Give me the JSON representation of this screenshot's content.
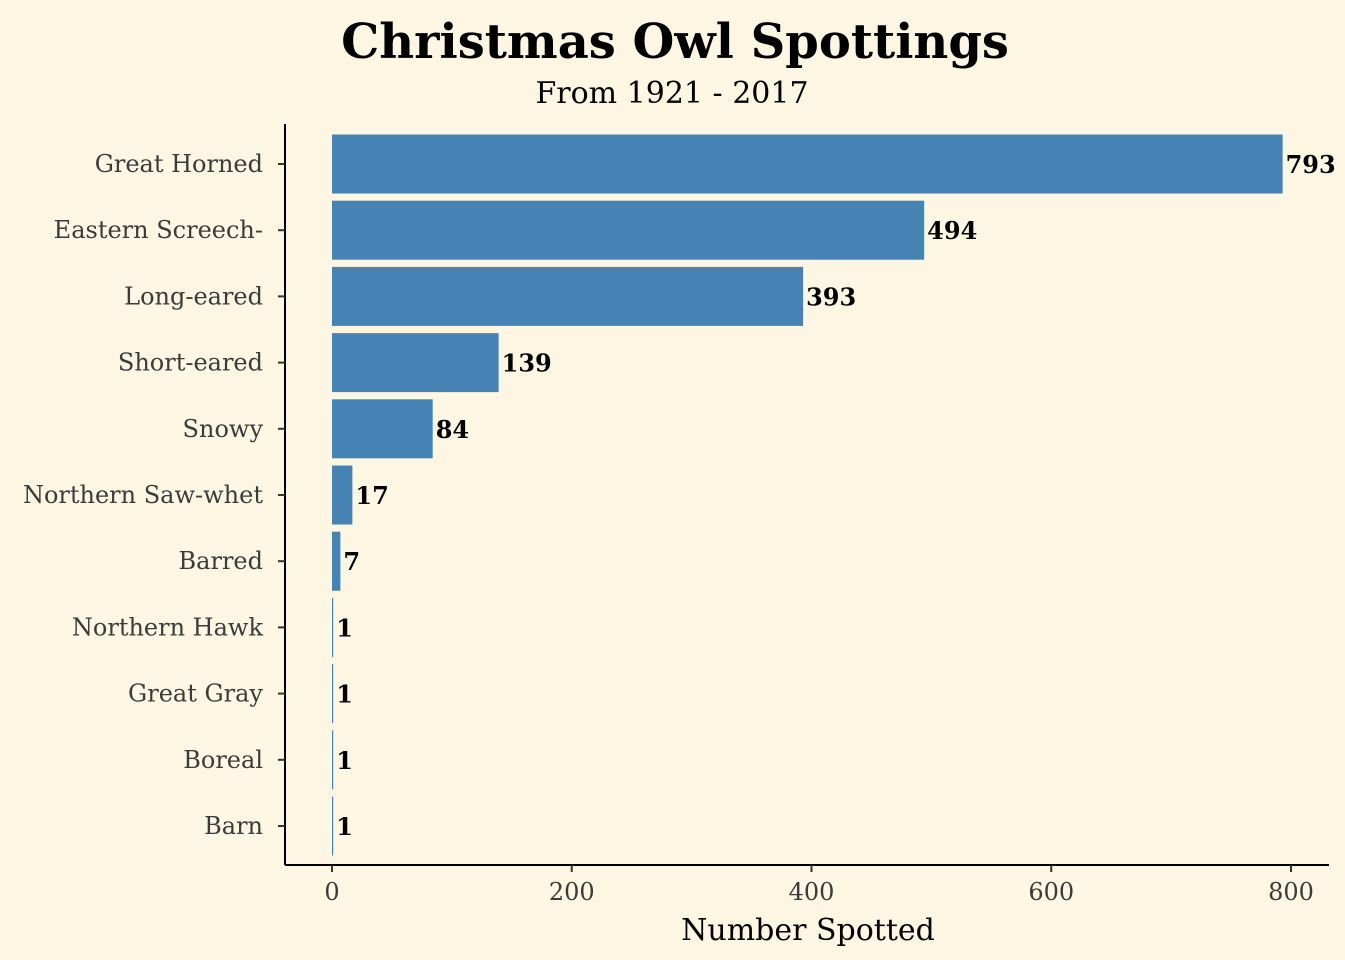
{
  "chart_data": {
    "type": "bar",
    "orientation": "horizontal",
    "title": "Christmas Owl Spottings",
    "subtitle": "From 1921 - 2017",
    "xlabel": "Number Spotted",
    "ylabel": "",
    "categories": [
      "Great Horned",
      "Eastern Screech-",
      "Long-eared",
      "Short-eared",
      "Snowy",
      "Northern Saw-whet",
      "Barred",
      "Northern Hawk",
      "Great Gray",
      "Boreal",
      "Barn"
    ],
    "values": [
      793,
      494,
      393,
      139,
      84,
      17,
      7,
      1,
      1,
      1,
      1
    ],
    "value_labels": [
      "793",
      "494",
      "393",
      "139",
      "84",
      "17",
      "7",
      "1",
      "1",
      "1",
      "1"
    ],
    "xlim": [
      -40,
      832
    ],
    "x_ticks": [
      0,
      200,
      400,
      600,
      800
    ],
    "x_tick_labels": [
      "0",
      "200",
      "400",
      "600",
      "800"
    ],
    "grid": false,
    "legend": "none",
    "colors": {
      "bar": "#4682b4",
      "background": "#fdf6e3",
      "axis": "#000000"
    }
  }
}
